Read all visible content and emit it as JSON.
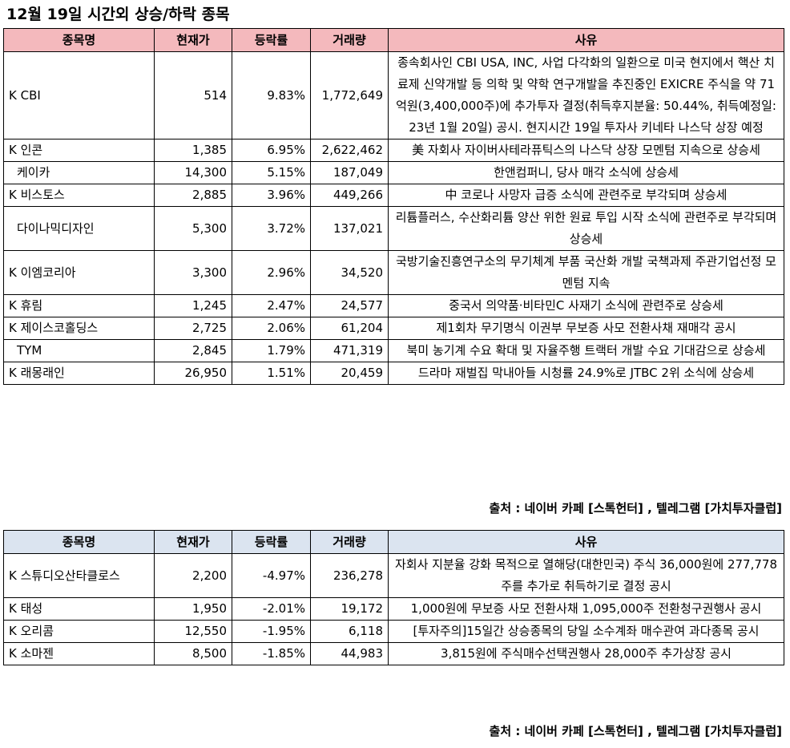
{
  "title": "12월 19일  시간외 상승/하락 종목",
  "columns": [
    "종목명",
    "현재가",
    "등락률",
    "거래량",
    "사유"
  ],
  "rising": [
    {
      "name": "K CBI",
      "price": "514",
      "rate": "9.83%",
      "volume": "1,772,649",
      "reason": "종속회사인 CBI USA, INC, 사업 다각화의 일환으로 미국 현지에서 핵산 치료제 신약개발 등 의학 및 약학 연구개발을 추진중인 EXICRE 주식을 약 71억원(3,400,000주)에 추가투자 결정(취득후지분율: 50.44%, 취득예정일: 23년 1월 20일) 공시. 현지시간 19일 투자사 키네타 나스닥 상장 예정"
    },
    {
      "name": "K 인콘",
      "price": "1,385",
      "rate": "6.95%",
      "volume": "2,622,462",
      "reason": "美 자회사 자이버사테라퓨틱스의 나스닥 상장 모멘텀 지속으로 상승세"
    },
    {
      "name": "케이카",
      "price": "14,300",
      "rate": "5.15%",
      "volume": "187,049",
      "reason": "한앤컴퍼니, 당사 매각 소식에 상승세"
    },
    {
      "name": "K 비스토스",
      "price": "2,885",
      "rate": "3.96%",
      "volume": "449,266",
      "reason": "中 코로나 사망자 급증 소식에 관련주로 부각되며 상승세"
    },
    {
      "name": "다이나믹디자인",
      "price": "5,300",
      "rate": "3.72%",
      "volume": "137,021",
      "reason": "리튬플러스, 수산화리튬 양산 위한 원료 투입 시작 소식에 관련주로 부각되며 상승세"
    },
    {
      "name": "K 이엠코리아",
      "price": "3,300",
      "rate": "2.96%",
      "volume": "34,520",
      "reason": "국방기술진흥연구소의 무기체계 부품 국산화 개발 국책과제 주관기업선정 모멘텀 지속"
    },
    {
      "name": "K 휴림",
      "price": "1,245",
      "rate": "2.47%",
      "volume": "24,577",
      "reason": "중국서 의약품·비타민C 사재기 소식에 관련주로 상승세"
    },
    {
      "name": "K 제이스코홀딩스",
      "price": "2,725",
      "rate": "2.06%",
      "volume": "61,204",
      "reason": "제1회차 무기명식 이권부 무보증 사모 전환사채 재매각 공시"
    },
    {
      "name": "TYM",
      "price": "2,845",
      "rate": "1.79%",
      "volume": "471,319",
      "reason": "북미 농기계 수요 확대 및 자율주행 트랙터 개발 수요 기대감으로 상승세"
    },
    {
      "name": "K 래몽래인",
      "price": "26,950",
      "rate": "1.51%",
      "volume": "20,459",
      "reason": "드라마 재벌집 막내아들 시청률 24.9%로 JTBC 2위 소식에 상승세"
    }
  ],
  "falling": [
    {
      "name": "K 스튜디오산타클로스",
      "price": "2,200",
      "rate": "-4.97%",
      "volume": "236,278",
      "reason": "자회사 지분율 강화 목적으로 열해당(대한민국) 주식 36,000원에 277,778주를 추가로 취득하기로 결정 공시"
    },
    {
      "name": "K 태성",
      "price": "1,950",
      "rate": "-2.01%",
      "volume": "19,172",
      "reason": "1,000원에 무보증 사모 전환사채 1,095,000주 전환청구권행사 공시"
    },
    {
      "name": "K 오리콤",
      "price": "12,550",
      "rate": "-1.95%",
      "volume": "6,118",
      "reason": "[투자주의]15일간 상승종목의 당일 소수계좌 매수관여 과다종목 공시"
    },
    {
      "name": "K 소마젠",
      "price": "8,500",
      "rate": "-1.85%",
      "volume": "44,983",
      "reason": "3,815원에 주식매수선택권행사 28,000주 추가상장 공시"
    }
  ],
  "source": "출처 : 네이버 카페 [스톡헌터] , 텔레그램 [가치투자클럽]"
}
